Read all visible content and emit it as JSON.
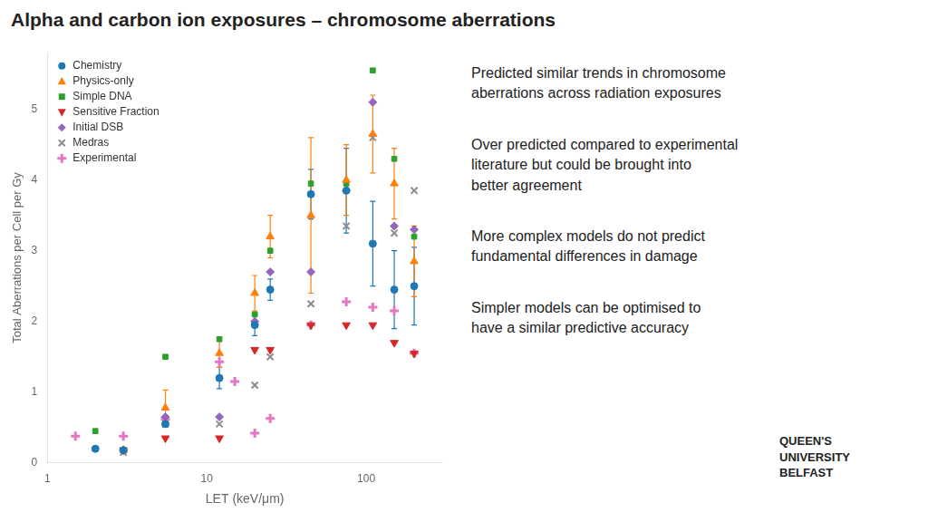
{
  "chart_data": {
    "type": "scatter",
    "title": "Alpha and carbon ion exposures – chromosome aberrations",
    "x_label": "LET (keV/μm)",
    "y_label": "Total Aberrations per Cell per Gy",
    "log": "x",
    "xlim": [
      1,
      300
    ],
    "xticks": [
      1,
      10,
      100
    ],
    "ylim": [
      0,
      5.8
    ],
    "yticks": [
      0,
      1,
      2,
      3,
      4,
      5
    ],
    "grid": false,
    "legend": "upper left",
    "annotations": [
      "Predicted similar trends in chromosome\naberrations across radiation exposures",
      "Over predicted compared to experimental\nliterature but could be brought into\nbetter agreement",
      "More complex models do not predict\nfundamental differences in damage",
      "Simpler models can be optimised to\nhave a similar predictive accuracy",
      "QUEEN'S\nUNIVERSITY\nBELFAST"
    ],
    "series": [
      {
        "name": "Chemistry",
        "color": "#1f77b4",
        "marker": "circle",
        "x": [
          2.0,
          3.0,
          5.5,
          12,
          20,
          25,
          45,
          75,
          110,
          150,
          200
        ],
        "values": [
          0.2,
          0.18,
          0.55,
          1.2,
          1.95,
          2.45,
          3.8,
          3.85,
          3.1,
          2.45,
          2.5
        ],
        "yerr": [
          0,
          0,
          0,
          0.15,
          0.15,
          0.15,
          0.35,
          0.6,
          0.6,
          0.55,
          0.55
        ]
      },
      {
        "name": "Physics-only",
        "color": "#ff7f0e",
        "marker": "triangle-up",
        "x": [
          3.0,
          5.5,
          12,
          20,
          25,
          45,
          75,
          110,
          150,
          200
        ],
        "values": [
          0.18,
          0.78,
          1.55,
          2.4,
          3.2,
          3.5,
          4.0,
          4.65,
          3.95,
          2.85
        ],
        "yerr": [
          0,
          0.25,
          0.2,
          0.25,
          0.3,
          1.1,
          0.5,
          0.55,
          0.5,
          0.5
        ]
      },
      {
        "name": "Simple DNA",
        "color": "#2ca02c",
        "marker": "square",
        "x": [
          2.0,
          3.0,
          5.5,
          12,
          20,
          25,
          45,
          75,
          110,
          150,
          200
        ],
        "values": [
          0.45,
          0.18,
          1.5,
          1.75,
          2.1,
          3.0,
          3.95,
          3.95,
          5.55,
          4.3,
          3.2
        ],
        "yerr": [
          0,
          0,
          0,
          0,
          0,
          0,
          0,
          0,
          0,
          0,
          0
        ]
      },
      {
        "name": "Sensitive Fraction",
        "color": "#d62728",
        "marker": "triangle-down",
        "x": [
          3.0,
          5.5,
          12,
          20,
          25,
          45,
          75,
          110,
          150,
          200
        ],
        "values": [
          0.18,
          0.35,
          0.35,
          1.6,
          1.6,
          1.95,
          1.95,
          1.95,
          1.7,
          1.55
        ],
        "yerr": [
          0,
          0,
          0,
          0,
          0,
          0,
          0,
          0,
          0,
          0
        ]
      },
      {
        "name": "Initial DSB",
        "color": "#9467bd",
        "marker": "diamond",
        "x": [
          3.0,
          5.5,
          12,
          20,
          25,
          45,
          75,
          110,
          150,
          200
        ],
        "values": [
          0.18,
          0.65,
          0.65,
          2.0,
          2.7,
          2.7,
          3.85,
          5.1,
          3.35,
          3.3
        ],
        "yerr": [
          0,
          0,
          0,
          0,
          0,
          0,
          0,
          0,
          0,
          0
        ]
      },
      {
        "name": "Medras",
        "color": "#8c8c8c",
        "marker": "x",
        "x": [
          3.0,
          5.5,
          12,
          20,
          25,
          45,
          75,
          110,
          150,
          200
        ],
        "values": [
          0.15,
          0.55,
          0.55,
          1.1,
          1.5,
          2.25,
          3.35,
          4.6,
          3.25,
          3.85
        ],
        "yerr": [
          0,
          0,
          0,
          0,
          0,
          0,
          0,
          0,
          0,
          0
        ]
      },
      {
        "name": "Experimental",
        "color": "#e377c2",
        "marker": "plus",
        "x": [
          1.5,
          3.0,
          5.5,
          12,
          15,
          20,
          25,
          45,
          75,
          110,
          150,
          200
        ],
        "values": [
          0.38,
          0.38,
          0.62,
          1.43,
          1.15,
          0.42,
          0.63,
          1.95,
          2.28,
          2.2,
          2.15,
          1.55
        ],
        "yerr": [
          0,
          0,
          0,
          0,
          0,
          0,
          0,
          0,
          0,
          0,
          0,
          0
        ]
      }
    ]
  }
}
